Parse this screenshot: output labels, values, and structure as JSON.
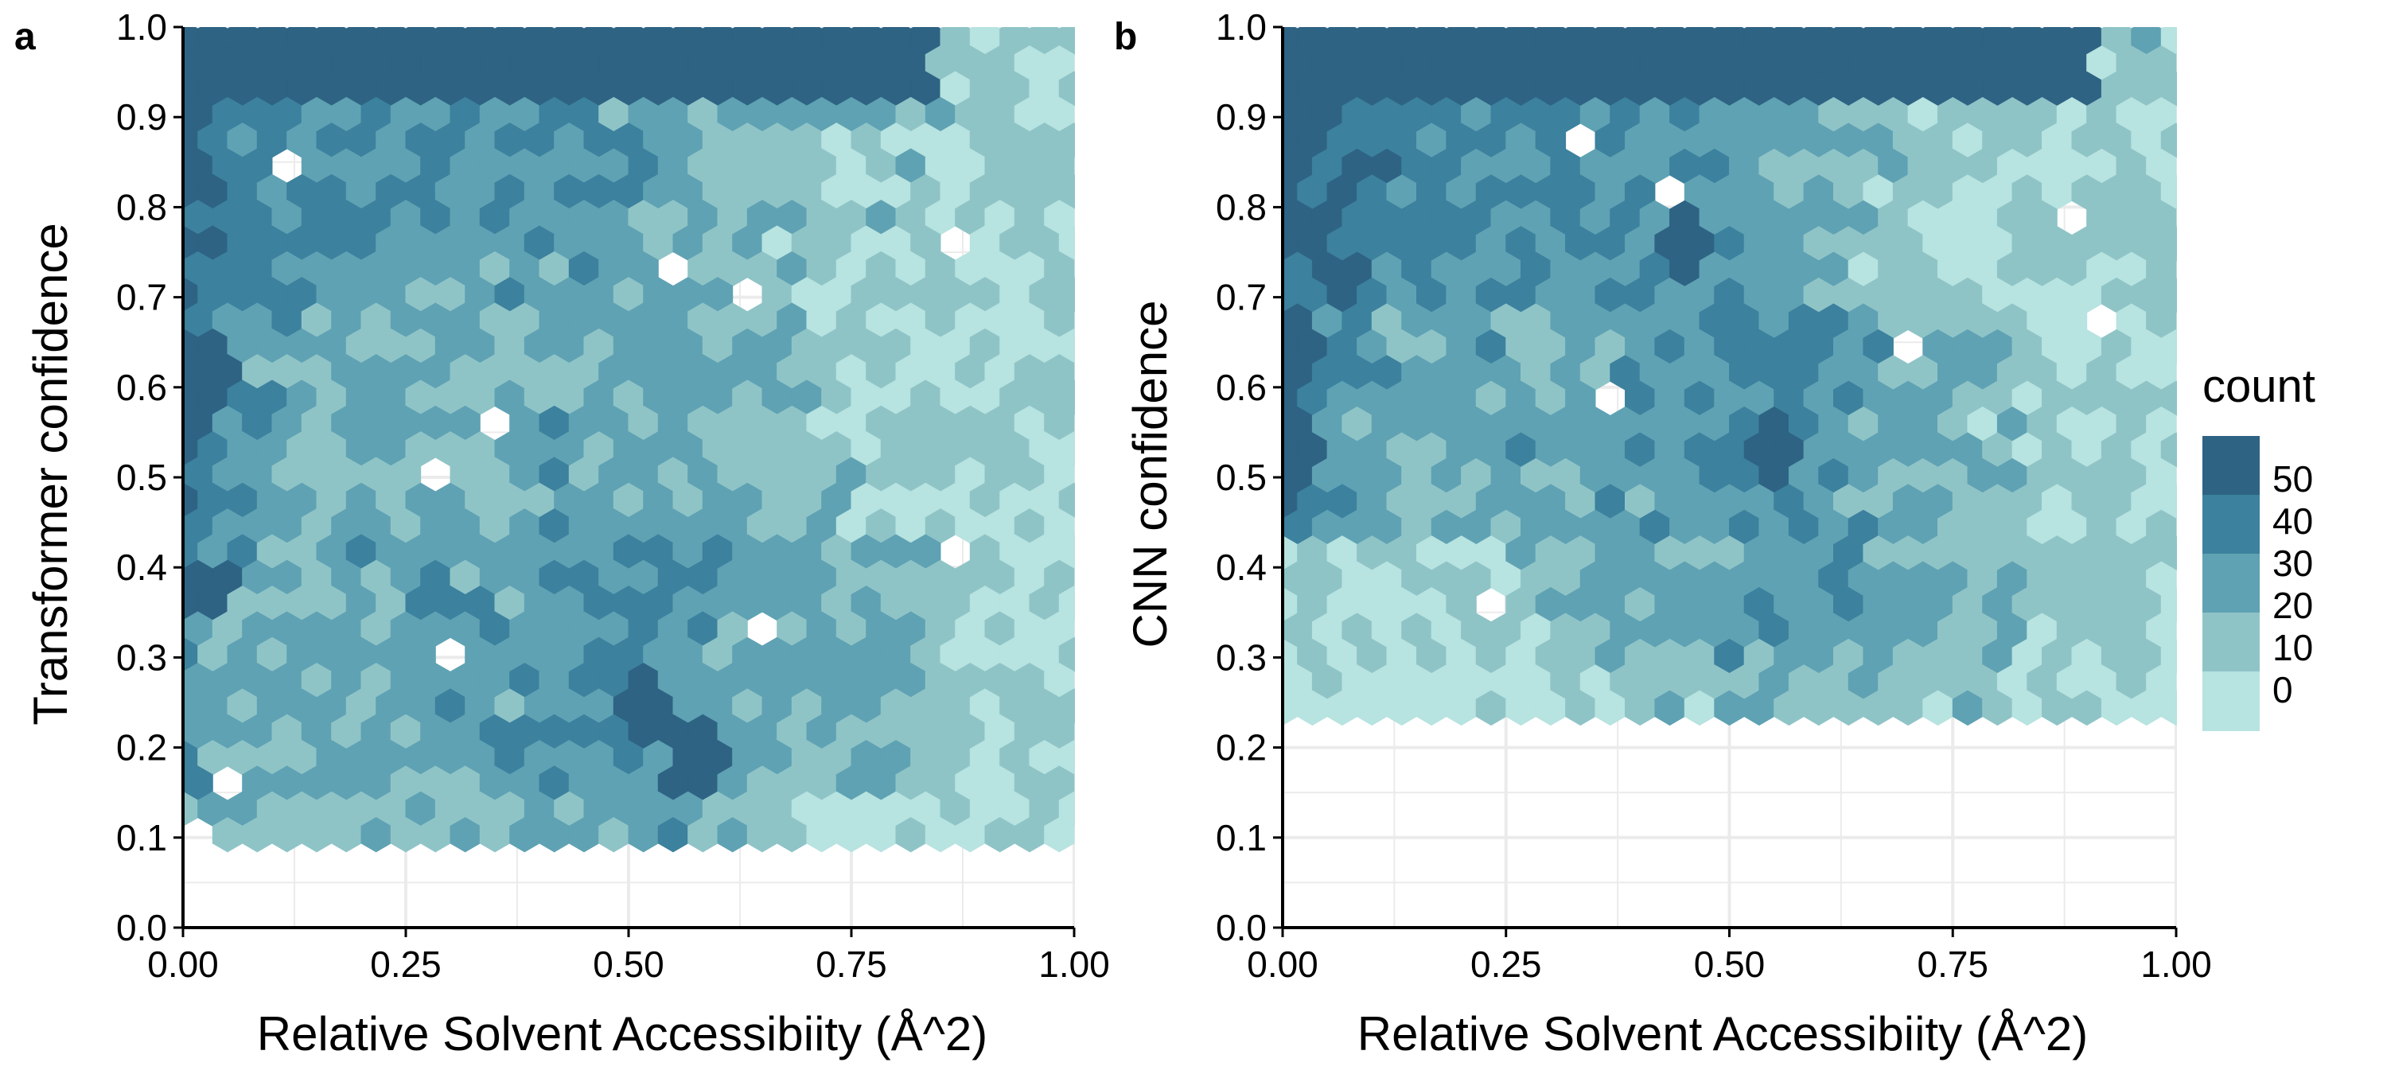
{
  "chart_data": [
    {
      "type": "heatmap",
      "panel_label": "a",
      "xlabel": "Relative Solvent Accessibiity (Å^2)",
      "ylabel": "Transformer confidence",
      "xlim": [
        0,
        1
      ],
      "ylim": [
        0,
        1
      ],
      "x_ticks": [
        "0.00",
        "0.25",
        "0.50",
        "0.75",
        "1.00"
      ],
      "y_ticks": [
        "0.0",
        "0.1",
        "0.2",
        "0.3",
        "0.4",
        "0.5",
        "0.6",
        "0.7",
        "0.8",
        "0.9",
        "1.0"
      ],
      "grid": true,
      "bins": "hexagonal",
      "density_profile": {
        "x_knots": [
          0.0,
          0.05,
          0.15,
          0.3,
          0.45,
          0.55,
          0.7,
          0.85,
          1.0
        ],
        "top_band_min_y": 0.93,
        "top_band_max_x": 0.85,
        "low_cutoff_y": 0.09
      },
      "hotspots": [
        {
          "x": 0.53,
          "y": 0.24,
          "count": 42
        },
        {
          "x": 0.57,
          "y": 0.19,
          "count": 40
        },
        {
          "x": 0.02,
          "y": 0.62,
          "count": 45
        },
        {
          "x": 0.02,
          "y": 0.38,
          "count": 44
        }
      ]
    },
    {
      "type": "heatmap",
      "panel_label": "b",
      "xlabel": "Relative Solvent Accessibiity (Å^2)",
      "ylabel": "CNN confidence",
      "xlim": [
        0,
        1
      ],
      "ylim": [
        0,
        1
      ],
      "x_ticks": [
        "0.00",
        "0.25",
        "0.50",
        "0.75",
        "1.00"
      ],
      "y_ticks": [
        "0.0",
        "0.1",
        "0.2",
        "0.3",
        "0.4",
        "0.5",
        "0.6",
        "0.7",
        "0.8",
        "0.9",
        "1.0"
      ],
      "grid": true,
      "bins": "hexagonal",
      "density_profile": {
        "x_knots": [
          0.0,
          0.05,
          0.15,
          0.3,
          0.45,
          0.55,
          0.7,
          0.85,
          1.0
        ],
        "top_band_min_y": 0.93,
        "top_band_max_x": 0.9,
        "low_cutoff_y": 0.22
      },
      "hotspots": [
        {
          "x": 0.02,
          "y": 0.65,
          "count": 45
        },
        {
          "x": 0.02,
          "y": 0.53,
          "count": 44
        },
        {
          "x": 0.45,
          "y": 0.76,
          "count": 42
        },
        {
          "x": 0.55,
          "y": 0.53,
          "count": 42
        }
      ]
    }
  ],
  "legend": {
    "title": "count",
    "placement": "right",
    "breaks": [
      "50",
      "40",
      "30",
      "20",
      "10",
      "0"
    ],
    "colors": [
      "#2e6384",
      "#3c819e",
      "#5fa2b3",
      "#8fc4c7",
      "#b7e3e0"
    ]
  }
}
